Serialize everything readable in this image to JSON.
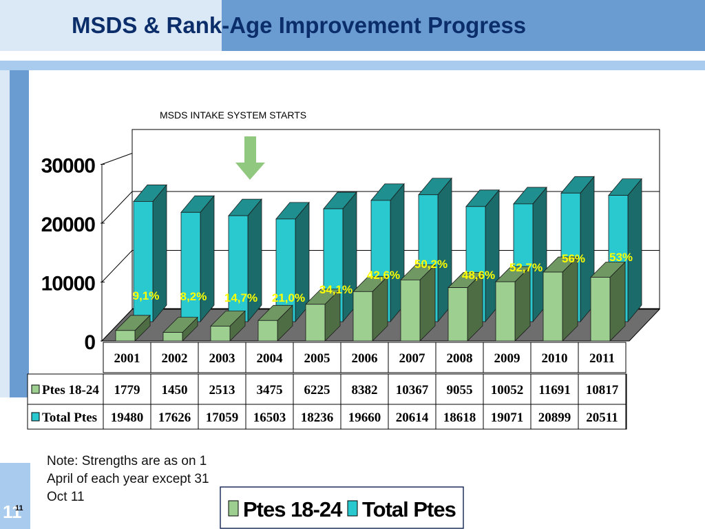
{
  "slide": {
    "title": "MSDS & Rank-Age Improvement Progress",
    "annotation": "MSDS INTAKE SYSTEM STARTS",
    "note": "Note:  Strengths are as on 1 April of each year except 31 Oct 11",
    "slide_number": "11",
    "slide_number_small": "11"
  },
  "colors": {
    "header_dark": "#6a9bd1",
    "header_light": "#dbe8f6",
    "title": "#0b2e6b",
    "ptes_front": "#9dcf90",
    "total_front": "#29c9cf",
    "pct_label": "#ffff00",
    "arrow": "#8fc87e"
  },
  "chart_data": {
    "type": "bar",
    "categories": [
      "2001",
      "2002",
      "2003",
      "2004",
      "2005",
      "2006",
      "2007",
      "2008",
      "2009",
      "2010",
      "2011"
    ],
    "series": [
      {
        "name": "Ptes 18-24",
        "values": [
          1779,
          1450,
          2513,
          3475,
          6225,
          8382,
          10367,
          9055,
          10052,
          11691,
          10817
        ]
      },
      {
        "name": "Total Ptes",
        "values": [
          19480,
          17626,
          17059,
          16503,
          18236,
          19660,
          20614,
          18618,
          19071,
          20899,
          20511
        ]
      }
    ],
    "percent_labels": [
      "9,1%",
      "8,2%",
      "14,7%",
      "21,0%",
      "34,1%",
      "42,6%",
      "50,2%",
      "48,6%",
      "52,7%",
      "56%",
      "53%"
    ],
    "y_ticks": [
      "0",
      "10000",
      "20000",
      "30000"
    ],
    "ylim": [
      0,
      30000
    ],
    "grid": true,
    "legend": {
      "position": "bottom",
      "entries": [
        "Ptes 18-24",
        "Total Ptes"
      ]
    },
    "table_rows": [
      "Ptes 18-24",
      "Total Ptes"
    ]
  }
}
